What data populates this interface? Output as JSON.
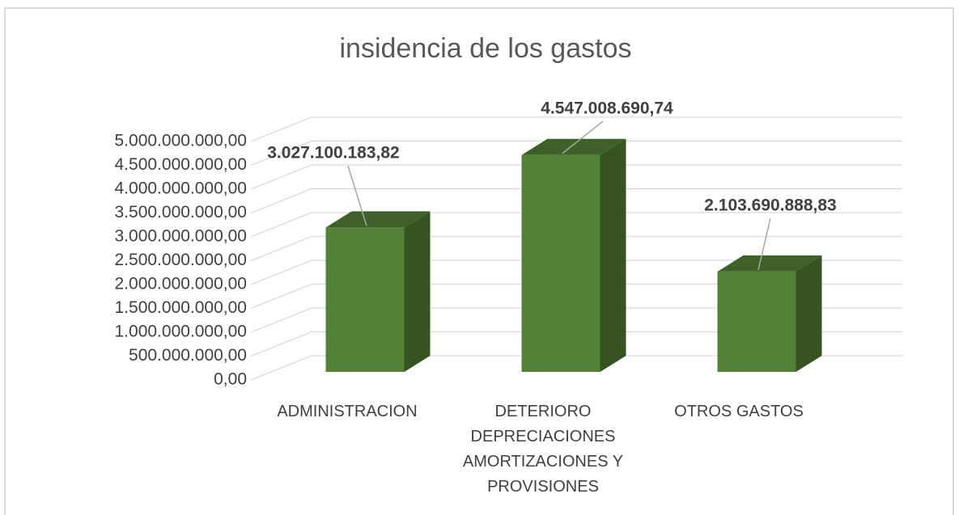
{
  "chart_data": {
    "type": "bar3d",
    "title": "insidencia de los gastos",
    "categories": [
      "ADMINISTRACION",
      "DETERIORO DEPRECIACIONES AMORTIZACIONES Y PROVISIONES",
      "OTROS GASTOS"
    ],
    "values": [
      3027100183.82,
      4547008690.74,
      2103690888.83
    ],
    "value_labels": [
      "3.027.100.183,82",
      "4.547.008.690,74",
      "2.103.690.888,83"
    ],
    "color": "#538135",
    "ylim": [
      0,
      5000000000
    ],
    "yticks": [
      {
        "value": 0,
        "label": "0,00"
      },
      {
        "value": 500000000,
        "label": "500.000.000,00"
      },
      {
        "value": 1000000000,
        "label": "1.000.000.000,00"
      },
      {
        "value": 1500000000,
        "label": "1.500.000.000,00"
      },
      {
        "value": 2000000000,
        "label": "2.000.000.000,00"
      },
      {
        "value": 2500000000,
        "label": "2.500.000.000,00"
      },
      {
        "value": 3000000000,
        "label": "3.000.000.000,00"
      },
      {
        "value": 3500000000,
        "label": "3.500.000.000,00"
      },
      {
        "value": 4000000000,
        "label": "4.000.000.000,00"
      },
      {
        "value": 4500000000,
        "label": "4.500.000.000,00"
      },
      {
        "value": 5000000000,
        "label": "5.000.000.000,00"
      }
    ],
    "grid": true
  }
}
